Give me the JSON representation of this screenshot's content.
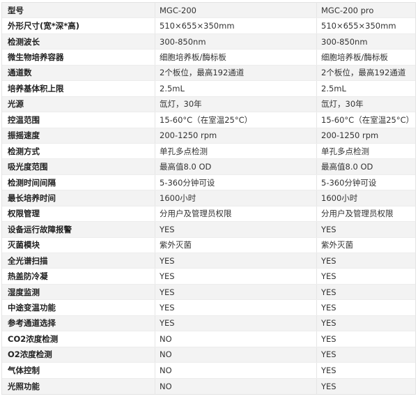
{
  "table": {
    "rows": [
      [
        "型号",
        "MGC-200",
        "MGC-200 pro"
      ],
      [
        "外形尺寸(宽*深*高)",
        "510×655×350mm",
        "510×655×350mm"
      ],
      [
        "检测波长",
        "300-850nm",
        "300-850nm"
      ],
      [
        "微生物培养容器",
        "细胞培养板/酶标板",
        "细胞培养板/酶标板"
      ],
      [
        "通道数",
        "2个板位，最高192通道",
        "2个板位，最高192通道"
      ],
      [
        "培养基体积上限",
        "2.5mL",
        "2.5mL"
      ],
      [
        "光源",
        "氙灯，30年",
        "氙灯，30年"
      ],
      [
        "控温范围",
        "15-60°C（在室温25°C）",
        "15-60°C（在室温25°C）"
      ],
      [
        "振摇速度",
        "200-1250 rpm",
        "200-1250 rpm"
      ],
      [
        "检测方式",
        "单孔多点检测",
        "单孔多点检测"
      ],
      [
        "吸光度范围",
        "最高值8.0 OD",
        "最高值8.0 OD"
      ],
      [
        "检测时间间隔",
        "5-360分钟可设",
        "5-360分钟可设"
      ],
      [
        "最长培养时间",
        "1600小时",
        "1600小时"
      ],
      [
        "权限管理",
        "分用户及管理员权限",
        "分用户及管理员权限"
      ],
      [
        "设备运行故障报警",
        "YES",
        "YES"
      ],
      [
        "灭菌模块",
        "紫外灭菌",
        "紫外灭菌"
      ],
      [
        "全光谱扫描",
        "YES",
        "YES"
      ],
      [
        "热盖防冷凝",
        "YES",
        "YES"
      ],
      [
        "湿度监测",
        "YES",
        "YES"
      ],
      [
        "中途变温功能",
        "YES",
        "YES"
      ],
      [
        "参考通道选择",
        "YES",
        "YES"
      ],
      [
        "CO2浓度检测",
        "NO",
        "YES"
      ],
      [
        "O2浓度检测",
        "NO",
        "YES"
      ],
      [
        "气体控制",
        "NO",
        "YES"
      ],
      [
        "光照功能",
        "NO",
        "YES"
      ]
    ]
  }
}
